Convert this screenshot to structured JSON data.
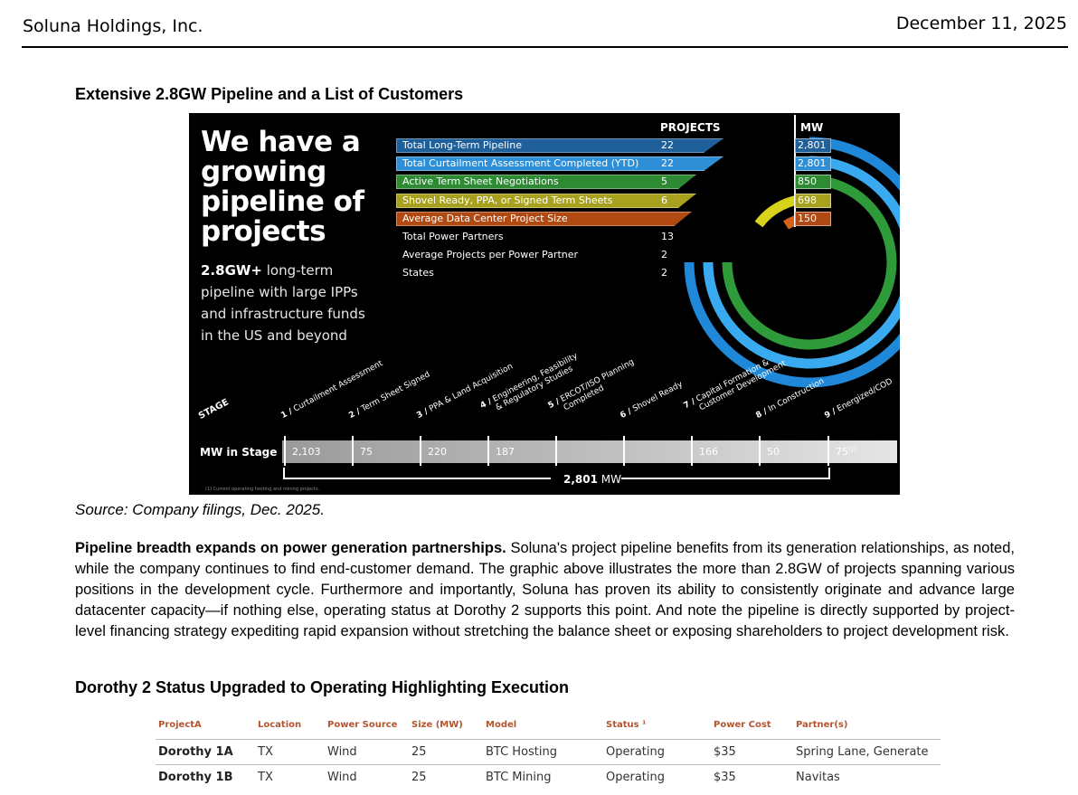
{
  "header": {
    "company": "Soluna Holdings, Inc.",
    "date": "December 11, 2025"
  },
  "section1_title": "Extensive 2.8GW Pipeline and a List of Customers",
  "figure": {
    "title_lines": [
      "We have a",
      "growing",
      "pipeline of",
      "projects"
    ],
    "subtext_bold": "2.8GW+",
    "subtext_rest": " long-term pipeline with large IPPs and infrastructure funds in the US and beyond",
    "col_projects": "PROJECTS",
    "col_mw": "MW",
    "rows": [
      {
        "label": "Total Long-Term Pipeline",
        "projects": "22",
        "mw": "2,801",
        "color": "#1f5f9a"
      },
      {
        "label": "Total Curtailment Assessment Completed (YTD)",
        "projects": "22",
        "mw": "2,801",
        "color": "#2f8fd6"
      },
      {
        "label": "Active Term Sheet Negotiations",
        "projects": "5",
        "mw": "850",
        "color": "#2e8b33"
      },
      {
        "label": "Shovel Ready, PPA, or Signed Term Sheets",
        "projects": "6",
        "mw": "698",
        "color": "#a8a11e"
      },
      {
        "label": "Average Data Center Project Size",
        "projects": "",
        "mw": "150",
        "color": "#b04a12"
      },
      {
        "label": "Total Power Partners",
        "projects": "13",
        "mw": "",
        "color": ""
      },
      {
        "label": "Average Projects per Power Partner",
        "projects": "2",
        "mw": "",
        "color": ""
      },
      {
        "label": "States",
        "projects": "2",
        "mw": "",
        "color": ""
      }
    ],
    "stage_head": "STAGE",
    "stages": [
      {
        "num": "1 /",
        "label": "Curtailment Assessment",
        "label2": ""
      },
      {
        "num": "2 /",
        "label": "Term Sheet Signed",
        "label2": ""
      },
      {
        "num": "3 /",
        "label": "PPA & Land Acquisition",
        "label2": ""
      },
      {
        "num": "4 /",
        "label": "Engineering, Feasibility",
        "label2": "& Regulatory Studies"
      },
      {
        "num": "5 /",
        "label": "ERCOT/ISO Planning",
        "label2": "Completed"
      },
      {
        "num": "6 /",
        "label": "Shovel Ready",
        "label2": ""
      },
      {
        "num": "7 /",
        "label": "Capital Formation &",
        "label2": "Customer Development"
      },
      {
        "num": "8 /",
        "label": "In Construction",
        "label2": ""
      },
      {
        "num": "9 /",
        "label": "Energized/COD",
        "label2": ""
      }
    ],
    "mw_in_stage_label": "MW in Stage",
    "mw_in_stage": [
      "2,103",
      "75",
      "220",
      "187",
      "",
      "",
      "166",
      "50",
      "75"
    ],
    "footnote_marker": "(1)",
    "total_bold": "2,801",
    "total_unit": " MW",
    "footnote": "(1)  Current operating hosting and mining projects."
  },
  "source": "Source: Company filings, Dec. 2025.",
  "para_bold": "Pipeline breadth expands on power generation partnerships.",
  "para_rest": " Soluna's project pipeline benefits from its generation relationships, as noted, while the company continues to find end-customer demand. The graphic above illustrates the more than 2.8GW of projects spanning various positions in the development cycle. Furthermore and importantly, Soluna has proven its ability to consistently originate and advance large datacenter capacity—if nothing else, operating status at Dorothy 2 supports this point. And note the pipeline is directly supported by project-level financing strategy expediting rapid expansion without stretching the balance sheet or exposing shareholders to project development risk.",
  "section2_title": "Dorothy 2 Status Upgraded to Operating Highlighting Execution",
  "table": {
    "headers": [
      "ProjectA",
      "Location",
      "Power Source",
      "Size (MW)",
      "Model",
      "Status ¹",
      "Power Cost",
      "Partner(s)"
    ],
    "rows": [
      [
        "Dorothy 1A",
        "TX",
        "Wind",
        "25",
        "BTC Hosting",
        "Operating",
        "$35",
        "Spring Lane, Generate"
      ],
      [
        "Dorothy 1B",
        "TX",
        "Wind",
        "25",
        "BTC Mining",
        "Operating",
        "$35",
        "Navitas"
      ]
    ]
  }
}
